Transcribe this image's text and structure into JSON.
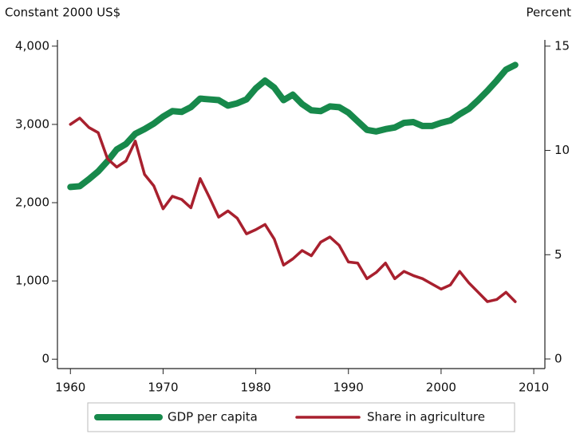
{
  "chart_data": {
    "type": "line",
    "y_label": "Constant 2000 US$",
    "y2_label": "Percent",
    "x": [
      1960,
      1961,
      1962,
      1963,
      1964,
      1965,
      1966,
      1967,
      1968,
      1969,
      1970,
      1971,
      1972,
      1973,
      1974,
      1975,
      1976,
      1977,
      1978,
      1979,
      1980,
      1981,
      1982,
      1983,
      1984,
      1985,
      1986,
      1987,
      1988,
      1989,
      1990,
      1991,
      1992,
      1993,
      1994,
      1995,
      1996,
      1997,
      1998,
      1999,
      2000,
      2001,
      2002,
      2003,
      2004,
      2005,
      2006,
      2007,
      2008
    ],
    "series": [
      {
        "name": "GDP per capita",
        "color": "#17894b",
        "axis": "y",
        "values": [
          2200,
          2210,
          2300,
          2400,
          2530,
          2680,
          2750,
          2880,
          2940,
          3010,
          3100,
          3170,
          3160,
          3220,
          3330,
          3320,
          3310,
          3240,
          3270,
          3320,
          3460,
          3560,
          3470,
          3310,
          3380,
          3260,
          3180,
          3170,
          3230,
          3220,
          3150,
          3040,
          2930,
          2910,
          2940,
          2960,
          3020,
          3030,
          2980,
          2980,
          3020,
          3050,
          3130,
          3200,
          3310,
          3430,
          3560,
          3700,
          3760
        ]
      },
      {
        "name": "Share in agriculture",
        "color": "#a8202e",
        "axis": "y2",
        "values": [
          11.25,
          11.55,
          11.1,
          10.85,
          9.6,
          9.2,
          9.5,
          10.45,
          8.85,
          8.3,
          7.2,
          7.8,
          7.65,
          7.25,
          8.65,
          7.75,
          6.8,
          7.1,
          6.75,
          6.0,
          6.2,
          6.45,
          5.75,
          4.5,
          4.8,
          5.2,
          4.95,
          5.6,
          5.85,
          5.45,
          4.65,
          4.6,
          3.85,
          4.15,
          4.6,
          3.85,
          4.2,
          4.0,
          3.85,
          3.6,
          3.35,
          3.55,
          4.2,
          3.65,
          3.2,
          2.75,
          2.85,
          3.2,
          2.75
        ]
      }
    ],
    "xlim": [
      1958.6,
      2011.2
    ],
    "xticks": [
      1960,
      1970,
      1980,
      1990,
      2000,
      2010
    ],
    "ylim": [
      -120,
      4080
    ],
    "yticks": [
      0,
      {
        "value": 1000,
        "label": "1,000"
      },
      {
        "value": 2000,
        "label": "2,000"
      },
      {
        "value": 3000,
        "label": "3,000"
      },
      {
        "value": 4000,
        "label": "4,000"
      }
    ],
    "y2lim": [
      -0.46,
      15.3
    ],
    "y2ticks": [
      0,
      5,
      10,
      15
    ],
    "legend": "bottom"
  }
}
